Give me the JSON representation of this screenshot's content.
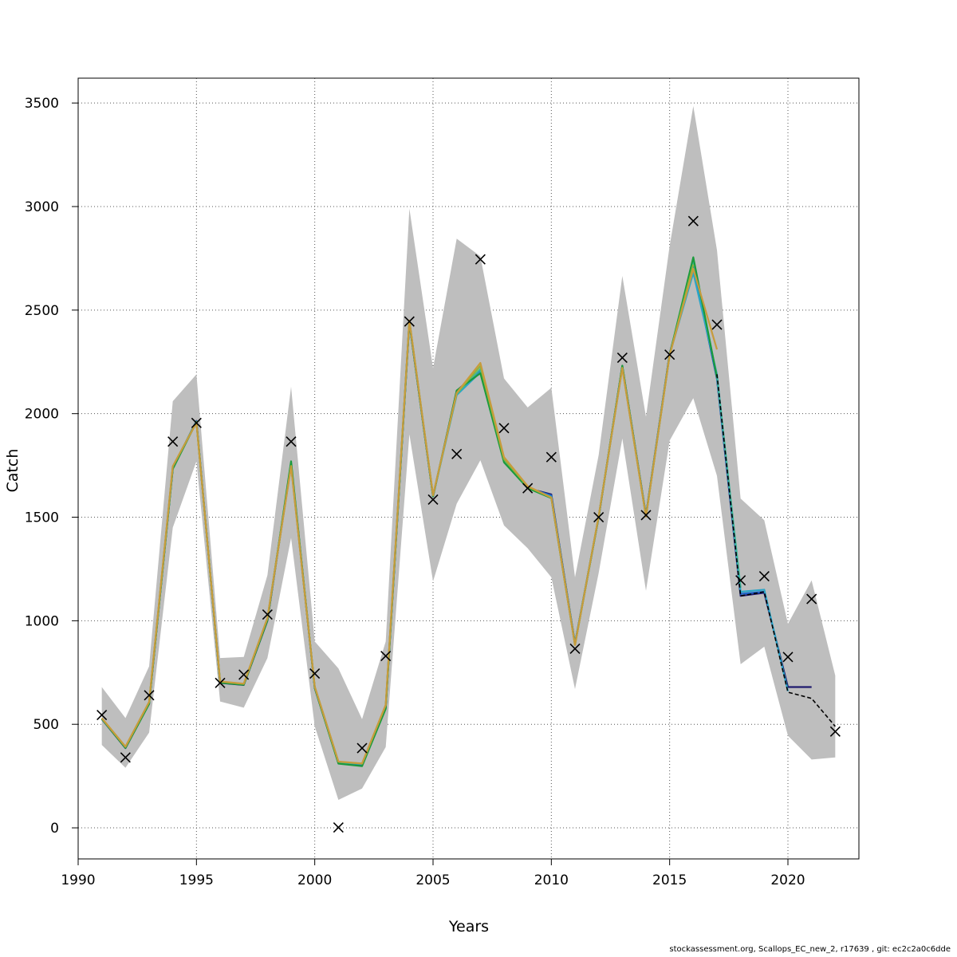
{
  "chart_data": {
    "type": "line",
    "title": "",
    "xlabel": "Years",
    "ylabel": "Catch",
    "xlim": [
      1990,
      2023
    ],
    "ylim": [
      -150,
      3620
    ],
    "x_ticks": [
      1990,
      1995,
      2000,
      2005,
      2010,
      2015,
      2020
    ],
    "y_ticks": [
      0,
      500,
      1000,
      1500,
      2000,
      2500,
      3000,
      3500
    ],
    "grid": true,
    "legend": "none",
    "band": {
      "color": "#bebebe",
      "x": [
        1991,
        1992,
        1993,
        1994,
        1995,
        1996,
        1997,
        1998,
        1999,
        2000,
        2001,
        2002,
        2003,
        2004,
        2005,
        2006,
        2007,
        2008,
        2009,
        2010,
        2011,
        2012,
        2013,
        2014,
        2015,
        2016,
        2017,
        2018,
        2019,
        2020,
        2021,
        2022
      ],
      "upper": [
        680,
        530,
        780,
        2060,
        2190,
        820,
        825,
        1220,
        2130,
        900,
        770,
        525,
        900,
        2990,
        2220,
        2845,
        2760,
        2170,
        2030,
        2125,
        1210,
        1800,
        2665,
        1985,
        2810,
        3485,
        2790,
        1590,
        1485,
        985,
        1195,
        735
      ],
      "lower": [
        400,
        290,
        460,
        1450,
        1770,
        610,
        580,
        820,
        1400,
        490,
        135,
        190,
        390,
        1900,
        1190,
        1565,
        1775,
        1460,
        1350,
        1210,
        670,
        1230,
        1880,
        1145,
        1870,
        2075,
        1700,
        790,
        875,
        445,
        330,
        340
      ]
    },
    "series": [
      {
        "color": "#1f1a6e",
        "x": [
          1991,
          1992,
          1993,
          1994,
          1995,
          1996,
          1997,
          1998,
          1999,
          2000,
          2001,
          2002,
          2003,
          2004,
          2005,
          2006,
          2007,
          2008,
          2009,
          2010,
          2011,
          2012,
          2013,
          2014,
          2015,
          2016,
          2017,
          2018,
          2019,
          2020,
          2021
        ],
        "values": [
          525,
          385,
          600,
          1735,
          1965,
          700,
          690,
          1000,
          1760,
          675,
          315,
          305,
          580,
          2440,
          1600,
          2110,
          2210,
          1770,
          1640,
          1610,
          890,
          1500,
          2230,
          1510,
          2290,
          2710,
          2170,
          1120,
          1135,
          680,
          680
        ]
      },
      {
        "color": "#1e64c8",
        "x": [
          1991,
          1992,
          1993,
          1994,
          1995,
          1996,
          1997,
          1998,
          1999,
          2000,
          2001,
          2002,
          2003,
          2004,
          2005,
          2006,
          2007,
          2008,
          2009,
          2010,
          2011,
          2012,
          2013,
          2014,
          2015,
          2016,
          2017,
          2018,
          2019
        ],
        "values": [
          525,
          387,
          602,
          1738,
          1963,
          702,
          692,
          1005,
          1758,
          677,
          316,
          306,
          585,
          2445,
          1602,
          2108,
          2205,
          1772,
          1642,
          1605,
          888,
          1500,
          2228,
          1508,
          2288,
          2705,
          2168,
          1130,
          1140
        ]
      },
      {
        "color": "#2aa5c8",
        "x": [
          1991,
          1992,
          1993,
          1994,
          1995,
          1996,
          1997,
          1998,
          1999,
          2000,
          2001,
          2002,
          2003,
          2004,
          2005,
          2006,
          2007,
          2008,
          2009,
          2010,
          2011,
          2012,
          2013,
          2014,
          2015,
          2016,
          2017,
          2018,
          2019,
          2020
        ],
        "values": [
          527,
          389,
          603,
          1740,
          1962,
          704,
          693,
          1008,
          1755,
          679,
          317,
          308,
          588,
          2447,
          1603,
          2090,
          2200,
          1775,
          1645,
          1598,
          887,
          1501,
          2226,
          1507,
          2286,
          2680,
          2190,
          1140,
          1150,
          660
        ]
      },
      {
        "color": "#3cb49a",
        "x": [
          1991,
          1992,
          1993,
          1994,
          1995,
          1996,
          1997,
          1998,
          1999,
          2000,
          2001,
          2002,
          2003,
          2004,
          2005,
          2006,
          2007,
          2008,
          2009,
          2010,
          2011,
          2012,
          2013,
          2014,
          2015,
          2016,
          2017,
          2018
        ],
        "values": [
          528,
          390,
          605,
          1742,
          1961,
          705,
          694,
          1010,
          1752,
          680,
          318,
          309,
          590,
          2448,
          1604,
          2095,
          2215,
          1778,
          1646,
          1596,
          886,
          1502,
          2224,
          1506,
          2285,
          2740,
          2180,
          1160
        ]
      },
      {
        "color": "#1a9a3c",
        "x": [
          1991,
          1992,
          1993,
          1994,
          1995,
          1996,
          1997,
          1998,
          1999,
          2000,
          2001,
          2002,
          2003,
          2004,
          2005,
          2006,
          2007,
          2008,
          2009,
          2010,
          2011,
          2012,
          2013,
          2014,
          2015,
          2016,
          2017
        ],
        "values": [
          526,
          386,
          598,
          1733,
          1960,
          701,
          691,
          1002,
          1770,
          676,
          310,
          298,
          575,
          2441,
          1601,
          2112,
          2195,
          1765,
          1640,
          1592,
          885,
          1500,
          2232,
          1505,
          2284,
          2755,
          2175
        ]
      },
      {
        "color": "#8cb43c",
        "x": [
          1991,
          1992,
          1993,
          1994,
          1995,
          1996,
          1997,
          1998,
          1999,
          2000,
          2001,
          2002,
          2003,
          2004,
          2005,
          2006,
          2007,
          2008,
          2009,
          2010,
          2011,
          2012,
          2013,
          2014,
          2015,
          2016
        ],
        "values": [
          529,
          391,
          607,
          1745,
          1958,
          706,
          695,
          1012,
          1748,
          681,
          319,
          310,
          592,
          2449,
          1605,
          2098,
          2230,
          1780,
          1648,
          1594,
          884,
          1503,
          2222,
          1504,
          2283,
          2720
        ]
      },
      {
        "color": "#c89b3c",
        "x": [
          1991,
          1992,
          1993,
          1994,
          1995,
          1996,
          1997,
          1998,
          1999,
          2000,
          2001,
          2002,
          2003,
          2004,
          2005,
          2006,
          2007,
          2008,
          2009,
          2010,
          2011,
          2012,
          2013,
          2014,
          2015,
          2016,
          2017
        ],
        "values": [
          530,
          392,
          608,
          1746,
          1957,
          707,
          696,
          1013,
          1745,
          682,
          320,
          311,
          594,
          2450,
          1606,
          2100,
          2245,
          1790,
          1650,
          1595,
          883,
          1504,
          2220,
          1503,
          2282,
          2700,
          2310
        ]
      }
    ],
    "prediction": {
      "color": "#000000",
      "dashed": true,
      "x": [
        2017,
        2018,
        2019,
        2020,
        2021,
        2022
      ],
      "values": [
        2190,
        1120,
        1140,
        655,
        625,
        490
      ]
    },
    "observed": {
      "marker": "x",
      "x": [
        1991,
        1992,
        1993,
        1994,
        1995,
        1996,
        1997,
        1998,
        1999,
        2000,
        2001,
        2002,
        2003,
        2004,
        2005,
        2006,
        2007,
        2008,
        2009,
        2010,
        2011,
        2012,
        2013,
        2014,
        2015,
        2016,
        2017,
        2018,
        2019,
        2020,
        2021,
        2022
      ],
      "values": [
        545,
        340,
        640,
        1865,
        1955,
        700,
        740,
        1030,
        1865,
        745,
        2,
        385,
        830,
        2445,
        1585,
        1805,
        2745,
        1930,
        1640,
        1790,
        865,
        1500,
        2270,
        1510,
        2285,
        2930,
        2430,
        1195,
        1215,
        825,
        1105,
        465
      ]
    }
  },
  "footer": "stockassessment.org, Scallops_EC_new_2, r17639 , git: ec2c2a0c6dde"
}
